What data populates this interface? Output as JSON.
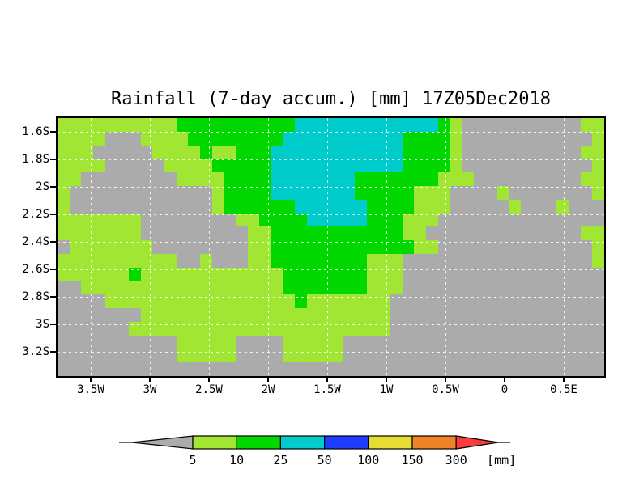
{
  "title": "Rainfall (7-day accum.) [mm] 17Z05Dec2018",
  "colors": {
    "G": "#ababab",
    "L": "#a0e632",
    "D": "#00d800",
    "C": "#00cccc",
    "B": "#1e3cff",
    "Y": "#e6dc32",
    "O": "#f08228",
    "R": "#fa3c3c"
  },
  "chart_data": {
    "type": "heatmap",
    "title": "Rainfall (7-day accum.) [mm] 17Z05Dec2018",
    "x_ticks": [
      "3.5W",
      "3W",
      "2.5W",
      "2W",
      "1.5W",
      "1W",
      "0.5W",
      "0",
      "0.5E"
    ],
    "y_ticks": [
      "1.6S",
      "1.8S",
      "2S",
      "2.2S",
      "2.4S",
      "2.6S",
      "2.8S",
      "3S",
      "3.2S"
    ],
    "grid_legend": {
      "G": "below 5 mm (gray)",
      "L": "5-10 mm (yellow-green)",
      "D": "10-25 mm (green)",
      "C": "25-50 mm (cyan)"
    },
    "grid": [
      "LLLLLLLLLLDDDDDDDDDDCCCCCCCCCCCCDLGGGGGGGGGGLL",
      "LLLLGGGLLLLDDDDDDDDCCCCCCCCCCDDDDLGGGGGGGGGGGL",
      "LLLGGGGGLLLLDLLDDDCCCCCCCCCCCDDDDLGGGGGGGGGGLL",
      "LLLLGGGGGLLLLDDDDDCCCCCCCCCCCDDDDLGGGGGGGGGGGL",
      "LLGGGGGGGGLLLLDDDDCCCCCCCDDDDDDDLLLGGGGGGGGGLL",
      "LGGGGGGGGGGGGLDDDDCCCCCCCDDDDDLLLGGGGLGGGGGGGL",
      "LGGGGGGGGGGGGLDDDDDDCCCCCCDDDDLLLGGGGGLGGGLGGG",
      "LLLLLLLGGGGGGGGLLDDDDCCCCCDDDLLLGGGGGGGGGGGGGG",
      "LLLLLLLGGGGGGGGGLLDDDDDDDDDDDLLGGGGGGGGGGGGGLL",
      "GLLLLLLLGGGGGGGGLLDDDDDDDDDDDDLLGGGGGGGGGGGGGL",
      "LLLLLLLLLLGGLGGGLLDDDDDDDDLLLGGGGGGGGGGGGGGGGL",
      "LLLLLLDLLLLLLLLLLLLDDDDDDDLLLGGGGGGGGGGGGGGGGG",
      "GGLLLLLLLLLLLLLLLLLDDDDDDDLLLGGGGGGGGGGGGGGGGG",
      "GGGGLLLLLLLLLLLLLLLLDLLLLLLLGGGGGGGGGGGGGGGGGG",
      "GGGGGGGLLLLLLLLLLLLLLLLLLLLLGGGGGGGGGGGGGGGGGG",
      "GGGGGGLLLLLLLLLLLLLLLLLLLLLLGGGGGGGGGGGGGGGGGG",
      "GGGGGGGGGGLLLLLGGGGLLLLLGGGGGGGGGGGGGGGGGGGGGG",
      "GGGGGGGGGGLLLLLGGGGLLLLLGGGGGGGGGGGGGGGGGGGGGG",
      "GGGGGGGGGGGGGGGGGGGGGGGGGGGGGGGGGGGGGGGGGGGGGG"
    ],
    "colorbar": {
      "values": [
        "5",
        "10",
        "25",
        "50",
        "100",
        "150",
        "300"
      ],
      "unit": "[mm]",
      "left_arrow_color": "G",
      "segment_colors": [
        "L",
        "D",
        "C",
        "B",
        "Y",
        "O"
      ],
      "right_arrow_color": "R"
    }
  }
}
